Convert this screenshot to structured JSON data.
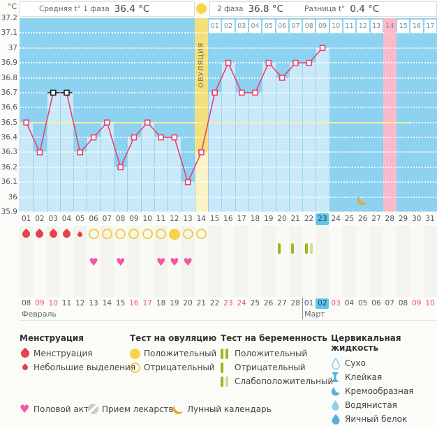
{
  "header": {
    "avg_phase1_label": "Средняя t° 1 фаза",
    "avg_phase1_value": "36.4 °C",
    "phase2_label": "2 фаза",
    "phase2_value": "36.8 °C",
    "diff_label": "Разница t°",
    "diff_value": "0.4 °C"
  },
  "chart_data": {
    "type": "line",
    "title": "График базальной температуры",
    "ylabel": "°C",
    "ylim": [
      35.9,
      37.2
    ],
    "ytick_step": 0.1,
    "yticks": [
      "37.2",
      "37.1",
      "37",
      "36.9",
      "36.8",
      "36.7",
      "36.6",
      "36.5",
      "36.4",
      "36.3",
      "36.2",
      "36.1",
      "36",
      "35.9"
    ],
    "grid": true,
    "categories": [
      "01",
      "02",
      "03",
      "04",
      "05",
      "06",
      "07",
      "08",
      "09",
      "10",
      "11",
      "12",
      "13",
      "14",
      "15",
      "16",
      "17",
      "18",
      "19",
      "20",
      "21",
      "22",
      "23",
      "24",
      "25",
      "26",
      "27",
      "28",
      "29",
      "30",
      "31"
    ],
    "values": [
      36.5,
      36.3,
      36.7,
      36.7,
      36.3,
      36.4,
      36.5,
      36.2,
      36.4,
      36.5,
      36.4,
      36.4,
      36.1,
      36.3,
      36.7,
      36.9,
      36.7,
      36.7,
      36.9,
      36.8,
      36.9,
      36.9,
      37,
      null,
      null,
      null,
      null,
      null,
      null,
      null,
      null
    ],
    "excluded_days": [
      3,
      4
    ],
    "coverline": 36.5,
    "ovulation_day": 14,
    "ovulation_label": "ОВУЛЯЦИЯ",
    "expected_period_day": 28,
    "today_cycle_day": 23,
    "moon_day": 26,
    "phase2": {
      "start_cycle_day": 15,
      "labels": [
        "01",
        "02",
        "03",
        "04",
        "05",
        "06",
        "07",
        "08",
        "09",
        "10",
        "11",
        "12",
        "13",
        "14",
        "15",
        "16",
        "17"
      ],
      "highlighted_label": "14"
    }
  },
  "symbols": {
    "menstruation_days": [
      1,
      2,
      3,
      4
    ],
    "spotting_days": [
      5
    ],
    "ovulation_test_negative_days": [
      6,
      7,
      8,
      9,
      10,
      11,
      13,
      14
    ],
    "ovulation_test_positive_days": [
      12
    ],
    "pregnancy_test_negative_days": [
      20,
      21
    ],
    "pregnancy_test_weak_positive_days": [
      22
    ],
    "intercourse_days": [
      6,
      8,
      11,
      12,
      13
    ]
  },
  "calendar": {
    "dates": [
      {
        "label": "08"
      },
      {
        "label": "09",
        "weekend": true
      },
      {
        "label": "10",
        "weekend": true
      },
      {
        "label": "11"
      },
      {
        "label": "12"
      },
      {
        "label": "13"
      },
      {
        "label": "14"
      },
      {
        "label": "15"
      },
      {
        "label": "16",
        "weekend": true
      },
      {
        "label": "17",
        "weekend": true
      },
      {
        "label": "18"
      },
      {
        "label": "19"
      },
      {
        "label": "20"
      },
      {
        "label": "21"
      },
      {
        "label": "22"
      },
      {
        "label": "23",
        "weekend": true
      },
      {
        "label": "24",
        "weekend": true
      },
      {
        "label": "25"
      },
      {
        "label": "26"
      },
      {
        "label": "27"
      },
      {
        "label": "28"
      },
      {
        "label": "01"
      },
      {
        "label": "02",
        "today": true
      },
      {
        "label": "03",
        "weekend": true
      },
      {
        "label": "04"
      },
      {
        "label": "05"
      },
      {
        "label": "06"
      },
      {
        "label": "07"
      },
      {
        "label": "08"
      },
      {
        "label": "09",
        "weekend": true
      },
      {
        "label": "10",
        "weekend": true
      }
    ],
    "divider_before_index": 21,
    "months": [
      {
        "label": "Февраль",
        "start_index": 0
      },
      {
        "label": "Март",
        "start_index": 21
      }
    ]
  },
  "legend": {
    "groups": [
      {
        "title": "Менструация",
        "items": [
          {
            "icon": "drop-large",
            "label": "Менструация"
          },
          {
            "icon": "drop-small",
            "label": "Небольшие выделения"
          }
        ]
      },
      {
        "title": "Тест на овуляцию",
        "items": [
          {
            "icon": "circle-filled",
            "label": "Положительный"
          },
          {
            "icon": "circle-outline",
            "label": "Отрицательный"
          }
        ]
      },
      {
        "title": "Тест на беременность",
        "items": [
          {
            "icon": "bars-two",
            "label": "Положительный"
          },
          {
            "icon": "bar-one",
            "label": "Отрицательный"
          },
          {
            "icon": "bars-weak",
            "label": "Слабоположительный"
          }
        ]
      },
      {
        "title": "Цервикальная жидкость",
        "items": [
          {
            "icon": "cerv-dry",
            "label": "Сухо"
          },
          {
            "icon": "cerv-sticky",
            "label": "Клейкая"
          },
          {
            "icon": "cerv-creamy",
            "label": "Кремообразная"
          },
          {
            "icon": "cerv-watery",
            "label": "Водянистая"
          },
          {
            "icon": "cerv-egg",
            "label": "Яичный белок"
          }
        ]
      }
    ],
    "bottom": [
      {
        "icon": "heart",
        "label": "Половой акт"
      },
      {
        "icon": "pill",
        "label": "Прием лекарств"
      },
      {
        "icon": "moon",
        "label": "Лунный календарь"
      }
    ]
  },
  "colors": {
    "chart_bg": "#8DD2F0",
    "chart_fill": "#C9E9F8",
    "ovulation_column": "#F3E07C",
    "ovulation_column_light": "#FAF3C6",
    "expected_period_column": "#F9BACB",
    "coverline": "#F6F0A2",
    "temperature_line": "#E8406F",
    "excluded_marker": "#1A1A1A",
    "today_highlight": "#5EC6EA",
    "weekend_date": "#EF5370",
    "menstruation": "#E8414E",
    "ovulation_test": "#F5CE3E",
    "ovulation_test_fill": "#F5D44A",
    "pregnancy_test": "#93BD1A",
    "pregnancy_test_weak": "#CCDF92",
    "intercourse": "#F655A5",
    "moon": "#F5A02A",
    "medication": "#CACAC6",
    "cervical": "#55AEDE",
    "cervical_light": "#8FCDEC"
  }
}
